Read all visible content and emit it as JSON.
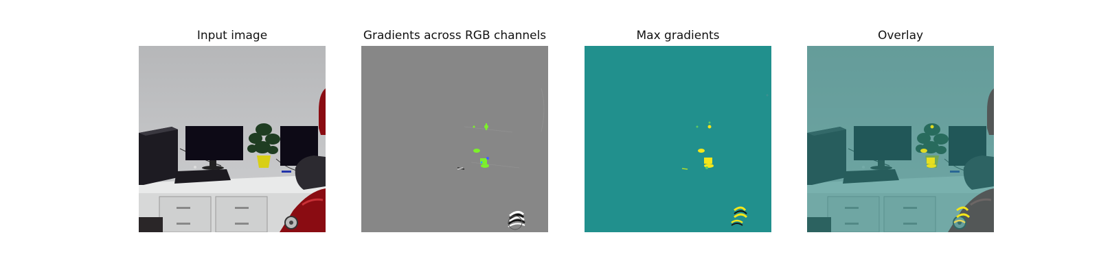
{
  "figure": {
    "panels": [
      {
        "title": "Input image"
      },
      {
        "title": "Gradients across RGB channels"
      },
      {
        "title": "Max gradients"
      },
      {
        "title": "Overlay"
      }
    ]
  },
  "colors": {
    "wall": "#c6c7c9",
    "desk": "#e9eaea",
    "monitor": "#0d0a16",
    "robot_red": "#8a0c12",
    "plant_green": "#1f3d22",
    "pot_yellow": "#d8cf16",
    "gradient_gray": "#878787",
    "gradient_green": "#7cf12a",
    "max_teal": "#21908d",
    "max_yellow": "#f4e61b",
    "overlay_tint": "#2f8a86"
  }
}
